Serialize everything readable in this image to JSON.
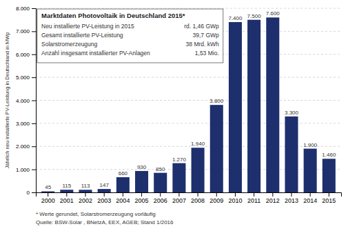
{
  "chart_data": {
    "type": "bar",
    "title": "Marktdaten Photovoltaik in Deutschland 2015*",
    "ylabel": "Jährlich neu installierte PV-Leistung in Deutschland in MWp",
    "categories": [
      "2000",
      "2001",
      "2002",
      "2003",
      "2004",
      "2005",
      "2006",
      "2007",
      "2008",
      "2009",
      "2010",
      "2011",
      "2012",
      "2013",
      "2014",
      "2015"
    ],
    "values": [
      45,
      115,
      113,
      147,
      660,
      930,
      850,
      1270,
      1940,
      3800,
      7400,
      7500,
      7600,
      3300,
      1900,
      1460
    ],
    "value_labels": [
      "45",
      "115",
      "113",
      "147",
      "660",
      "930",
      "850",
      "1.270",
      "1.940",
      "3.800",
      "7.400",
      "7.500",
      "7.600",
      "3.300",
      "1.900",
      "1.460"
    ],
    "data_labels": true,
    "color": "#1e2f6e",
    "ylim": [
      0,
      8000
    ],
    "yticks": [
      0,
      {
        "value": 1000,
        "label": "1.000"
      },
      {
        "value": 2000,
        "label": "2.000"
      },
      {
        "value": 3000,
        "label": "3.000"
      },
      {
        "value": 4000,
        "label": "4.000"
      },
      {
        "value": 5000,
        "label": "5.000"
      },
      {
        "value": 6000,
        "label": "6.000"
      },
      {
        "value": 7000,
        "label": "7.000"
      },
      {
        "value": 8000,
        "label": "8.000"
      }
    ],
    "grid": true,
    "annotations": [
      [
        "Neu installierte PV-Leistung in 2015",
        "rd. 1,46 GWp"
      ],
      [
        "Gesamt installierte PV-Leistung",
        "39,7 GWp"
      ],
      [
        "Solarstromerzeugung",
        "38 Mrd. kWh"
      ],
      [
        "Anzahl insgesamt installierter PV-Anlagen",
        "1,53 Mio."
      ]
    ],
    "footnotes": [
      "* Werte gerundet, Solarstromerzeugung vorläufig",
      "Quelle: BSW-Solar , BNetzA, EEX, AGEB; Stand 1/2016"
    ]
  }
}
